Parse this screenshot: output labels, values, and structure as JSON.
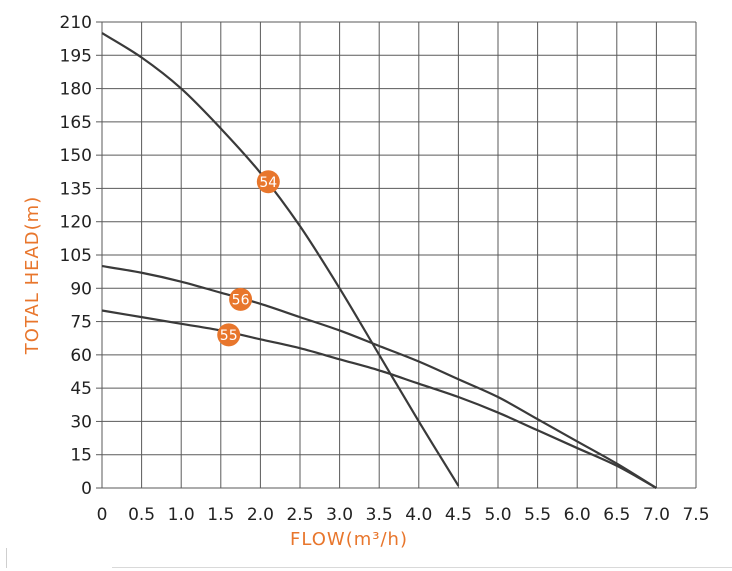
{
  "chart_data": {
    "type": "line",
    "xlabel": "FLOW(m³/h)",
    "ylabel": "TOTAL HEAD(m)",
    "xlim": [
      0,
      7.5
    ],
    "ylim": [
      0,
      210
    ],
    "x_ticks": [
      "0",
      "0.5",
      "1.0",
      "1.5",
      "2.0",
      "2.5",
      "3.0",
      "3.5",
      "4.0",
      "4.5",
      "5.0",
      "5.5",
      "6.0",
      "6.5",
      "7.0",
      "7.5"
    ],
    "y_ticks": [
      "0",
      "15",
      "30",
      "45",
      "60",
      "75",
      "90",
      "105",
      "120",
      "135",
      "150",
      "165",
      "180",
      "195",
      "210"
    ],
    "grid": true,
    "colors": {
      "curve": "#3a3a3a",
      "badge": "#e8762c",
      "axis_title": "#e8762c",
      "grid": "#5a5a5a"
    },
    "series": [
      {
        "name": "54",
        "x": [
          0,
          0.5,
          1.0,
          1.5,
          2.0,
          2.5,
          3.0,
          3.5,
          4.0,
          4.5
        ],
        "y": [
          205,
          194,
          180,
          162,
          142,
          118,
          90,
          60,
          30,
          1
        ],
        "label_at": [
          2.1,
          138
        ]
      },
      {
        "name": "56",
        "x": [
          0,
          0.5,
          1.0,
          1.5,
          2.0,
          2.5,
          3.0,
          3.5,
          4.0,
          4.5,
          5.0,
          5.5,
          6.0,
          6.5,
          7.0
        ],
        "y": [
          100,
          97,
          93,
          88,
          83,
          77,
          71,
          64,
          57,
          49,
          41,
          31,
          21,
          11,
          0
        ],
        "label_at": [
          1.75,
          85
        ]
      },
      {
        "name": "55",
        "x": [
          0,
          0.5,
          1.0,
          1.5,
          2.0,
          2.5,
          3.0,
          3.5,
          4.0,
          4.5,
          5.0,
          5.5,
          6.0,
          6.5,
          7.0
        ],
        "y": [
          80,
          77,
          74,
          71,
          67,
          63,
          58,
          53,
          47,
          41,
          34,
          26,
          18,
          10,
          0
        ],
        "label_at": [
          1.6,
          69
        ]
      }
    ]
  }
}
